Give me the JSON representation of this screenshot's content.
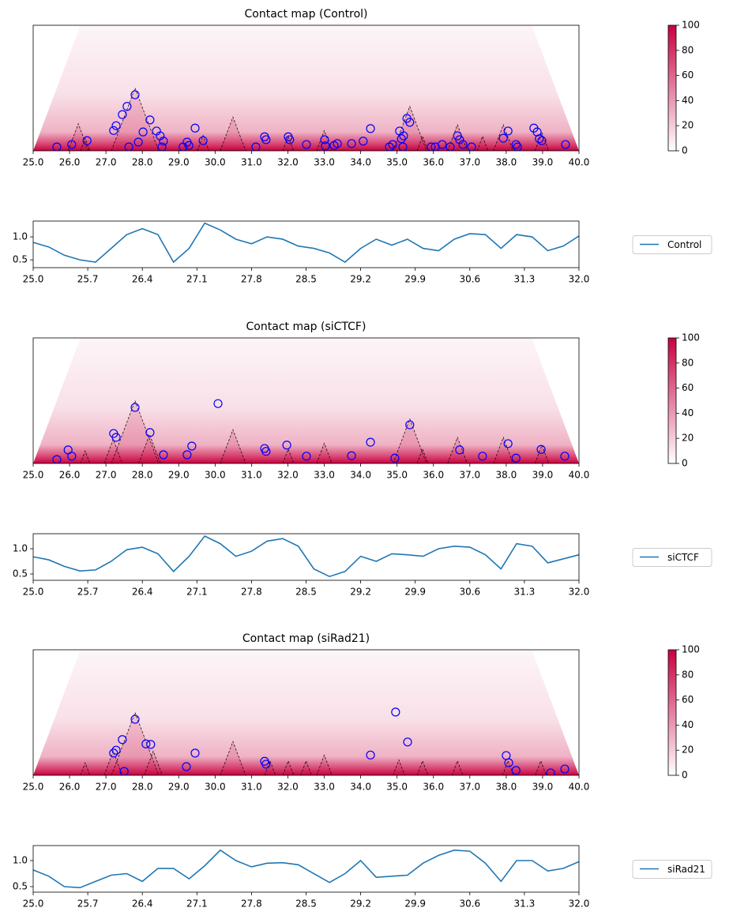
{
  "chart_data": [
    {
      "type": "heatmap",
      "title": "Contact map (Control)",
      "xlim": [
        25,
        40
      ],
      "ylim": [
        0,
        2.6
      ],
      "xticks": [
        {
          "value": 25,
          "label": "25.0"
        },
        {
          "value": 26,
          "label": "26.0"
        },
        {
          "value": 27,
          "label": "27.0"
        },
        {
          "value": 28,
          "label": "28.0"
        },
        {
          "value": 29,
          "label": "29.0"
        },
        {
          "value": 30,
          "label": "30.0"
        },
        {
          "value": 31,
          "label": "31.0"
        },
        {
          "value": 32,
          "label": "32.0"
        },
        {
          "value": 33,
          "label": "33.0"
        },
        {
          "value": 34,
          "label": "34.0"
        },
        {
          "value": 35,
          "label": "35.0"
        },
        {
          "value": 36,
          "label": "36.0"
        },
        {
          "value": 37,
          "label": "37.0"
        },
        {
          "value": 38,
          "label": "38.0"
        },
        {
          "value": 39,
          "label": "39.0"
        },
        {
          "value": 40,
          "label": "40.0"
        }
      ],
      "cmap": [
        "#ffffff",
        "#c9003f"
      ],
      "colorbar": {
        "lim": [
          0,
          100
        ],
        "ticks": [
          0,
          20,
          40,
          60,
          80,
          100
        ]
      },
      "domains": [
        [
          25.96,
          26.52
        ],
        [
          26.3,
          26.56
        ],
        [
          27.15,
          28.45
        ],
        [
          29.51,
          29.83
        ],
        [
          30.14,
          30.84
        ],
        [
          31.86,
          32.16
        ],
        [
          32.79,
          33.21
        ],
        [
          34.89,
          35.81
        ],
        [
          35.55,
          35.85
        ],
        [
          36.39,
          36.93
        ],
        [
          37.2,
          37.5
        ],
        [
          37.65,
          38.19
        ],
        [
          38.79,
          39.17
        ]
      ],
      "loops": {
        "color": "#0000ff",
        "x": [
          25.65,
          26.06,
          26.48,
          27.21,
          27.28,
          27.45,
          27.58,
          27.8,
          27.63,
          27.89,
          28.02,
          28.21,
          28.39,
          28.49,
          28.58,
          28.54,
          29.23,
          29.28,
          29.45,
          29.67,
          29.12,
          31.12,
          31.36,
          31.4,
          32.01,
          32.05,
          32.51,
          33.01,
          33.03,
          33.27,
          33.36,
          33.75,
          34.07,
          34.27,
          34.79,
          34.88,
          35.07,
          35.12,
          35.18,
          35.27,
          35.35,
          35.16,
          35.94,
          36.05,
          36.24,
          36.46,
          36.66,
          36.72,
          36.81,
          37.05,
          37.92,
          38.05,
          38.27,
          38.31,
          38.76,
          38.85,
          38.91,
          38.98,
          39.63
        ],
        "y": [
          0.08,
          0.13,
          0.21,
          0.42,
          0.52,
          0.75,
          0.92,
          1.16,
          0.08,
          0.18,
          0.39,
          0.64,
          0.41,
          0.31,
          0.2,
          0.08,
          0.18,
          0.11,
          0.47,
          0.21,
          0.08,
          0.08,
          0.29,
          0.23,
          0.29,
          0.23,
          0.13,
          0.23,
          0.1,
          0.11,
          0.15,
          0.15,
          0.2,
          0.46,
          0.08,
          0.13,
          0.41,
          0.25,
          0.31,
          0.67,
          0.59,
          0.08,
          0.08,
          0.08,
          0.13,
          0.08,
          0.31,
          0.23,
          0.13,
          0.08,
          0.26,
          0.41,
          0.13,
          0.08,
          0.47,
          0.39,
          0.25,
          0.21,
          0.13
        ]
      }
    },
    {
      "type": "line",
      "xlim": [
        25,
        32
      ],
      "ylim": [
        0.33,
        1.345
      ],
      "legend": "right",
      "xticks": [
        {
          "value": 25,
          "label": "25.0"
        },
        25.7,
        26.4,
        27.1,
        27.8,
        28.5,
        29.2,
        29.9,
        30.6,
        31.3,
        {
          "value": 32,
          "label": "32.0"
        }
      ],
      "yticks": [
        0.5,
        {
          "value": 1,
          "label": "1.0"
        }
      ],
      "x": [
        25,
        25.2,
        25.4,
        25.6,
        25.8,
        26,
        26.2,
        26.4,
        26.6,
        26.8,
        27,
        27.2,
        27.4,
        27.6,
        27.8,
        28,
        28.2,
        28.4,
        28.6,
        28.8,
        29,
        29.2,
        29.4,
        29.6,
        29.8,
        30,
        30.2,
        30.4,
        30.6,
        30.8,
        31,
        31.2,
        31.4,
        31.6,
        31.8,
        32
      ],
      "series": [
        {
          "name": "Control",
          "color": "#1f77b4",
          "values": [
            0.88,
            0.78,
            0.6,
            0.5,
            0.45,
            0.75,
            1.05,
            1.18,
            1.05,
            0.45,
            0.75,
            1.3,
            1.15,
            0.95,
            0.85,
            1.0,
            0.95,
            0.8,
            0.75,
            0.65,
            0.45,
            0.75,
            0.95,
            0.82,
            0.95,
            0.75,
            0.7,
            0.95,
            1.07,
            1.05,
            0.75,
            1.05,
            1.0,
            0.7,
            0.8,
            1.02
          ]
        }
      ]
    },
    {
      "type": "heatmap",
      "title": "Contact map (siCTCF)",
      "xlim": [
        25,
        40
      ],
      "ylim": [
        0,
        2.6
      ],
      "xticks": [
        {
          "value": 25,
          "label": "25.0"
        },
        {
          "value": 26,
          "label": "26.0"
        },
        {
          "value": 27,
          "label": "27.0"
        },
        {
          "value": 28,
          "label": "28.0"
        },
        {
          "value": 29,
          "label": "29.0"
        },
        {
          "value": 30,
          "label": "30.0"
        },
        {
          "value": 31,
          "label": "31.0"
        },
        {
          "value": 32,
          "label": "32.0"
        },
        {
          "value": 33,
          "label": "33.0"
        },
        {
          "value": 34,
          "label": "34.0"
        },
        {
          "value": 35,
          "label": "35.0"
        },
        {
          "value": 36,
          "label": "36.0"
        },
        {
          "value": 37,
          "label": "37.0"
        },
        {
          "value": 38,
          "label": "38.0"
        },
        {
          "value": 39,
          "label": "39.0"
        },
        {
          "value": 40,
          "label": "40.0"
        }
      ],
      "cmap": [
        "#ffffff",
        "#c9003f"
      ],
      "colorbar": {
        "lim": [
          0,
          100
        ],
        "ticks": [
          0,
          20,
          40,
          60,
          80,
          100
        ]
      },
      "domains": [
        [
          26.3,
          26.56
        ],
        [
          26.95,
          27.45
        ],
        [
          27.15,
          28.45
        ],
        [
          27.9,
          28.5
        ],
        [
          30.14,
          30.84
        ],
        [
          31.86,
          32.16
        ],
        [
          32.79,
          33.21
        ],
        [
          34.89,
          35.81
        ],
        [
          35.55,
          35.85
        ],
        [
          36.39,
          36.93
        ],
        [
          37.65,
          38.19
        ],
        [
          38.79,
          39.17
        ]
      ],
      "loops": {
        "color": "#0000ff",
        "x": [
          25.65,
          25.96,
          26.06,
          27.21,
          27.28,
          27.8,
          28.21,
          28.58,
          29.23,
          29.36,
          30.08,
          31.36,
          31.4,
          31.97,
          32.51,
          33.75,
          34.27,
          34.94,
          35.35,
          36.72,
          37.35,
          38.05,
          38.27,
          38.96,
          39.61
        ],
        "y": [
          0.08,
          0.28,
          0.15,
          0.62,
          0.54,
          1.16,
          0.64,
          0.18,
          0.18,
          0.36,
          1.24,
          0.31,
          0.25,
          0.38,
          0.15,
          0.16,
          0.44,
          0.11,
          0.8,
          0.28,
          0.15,
          0.41,
          0.11,
          0.29,
          0.15
        ]
      }
    },
    {
      "type": "line",
      "xlim": [
        25,
        32
      ],
      "ylim": [
        0.375,
        1.297
      ],
      "legend": "right",
      "xticks": [
        {
          "value": 25,
          "label": "25.0"
        },
        25.7,
        26.4,
        27.1,
        27.8,
        28.5,
        29.2,
        29.9,
        30.6,
        31.3,
        {
          "value": 32,
          "label": "32.0"
        }
      ],
      "yticks": [
        0.5,
        {
          "value": 1,
          "label": "1.0"
        }
      ],
      "x": [
        25,
        25.2,
        25.4,
        25.6,
        25.8,
        26,
        26.2,
        26.4,
        26.6,
        26.8,
        27,
        27.2,
        27.4,
        27.6,
        27.8,
        28,
        28.2,
        28.4,
        28.6,
        28.8,
        29,
        29.2,
        29.4,
        29.6,
        29.8,
        30,
        30.2,
        30.4,
        30.6,
        30.8,
        31,
        31.2,
        31.4,
        31.6,
        31.8,
        32
      ],
      "series": [
        {
          "name": "siCTCF",
          "color": "#1f77b4",
          "values": [
            0.84,
            0.78,
            0.65,
            0.56,
            0.58,
            0.75,
            0.98,
            1.03,
            0.9,
            0.55,
            0.85,
            1.25,
            1.1,
            0.85,
            0.95,
            1.15,
            1.2,
            1.05,
            0.6,
            0.45,
            0.55,
            0.85,
            0.75,
            0.9,
            0.88,
            0.85,
            1.0,
            1.05,
            1.03,
            0.88,
            0.6,
            1.1,
            1.05,
            0.72,
            0.8,
            0.88
          ]
        }
      ]
    },
    {
      "type": "heatmap",
      "title": "Contact map (siRad21)",
      "xlim": [
        25,
        40
      ],
      "ylim": [
        0,
        2.6
      ],
      "xticks": [
        {
          "value": 25,
          "label": "25.0"
        },
        {
          "value": 26,
          "label": "26.0"
        },
        {
          "value": 27,
          "label": "27.0"
        },
        {
          "value": 28,
          "label": "28.0"
        },
        {
          "value": 29,
          "label": "29.0"
        },
        {
          "value": 30,
          "label": "30.0"
        },
        {
          "value": 31,
          "label": "31.0"
        },
        {
          "value": 32,
          "label": "32.0"
        },
        {
          "value": 33,
          "label": "33.0"
        },
        {
          "value": 34,
          "label": "34.0"
        },
        {
          "value": 35,
          "label": "35.0"
        },
        {
          "value": 36,
          "label": "36.0"
        },
        {
          "value": 37,
          "label": "37.0"
        },
        {
          "value": 38,
          "label": "38.0"
        },
        {
          "value": 39,
          "label": "39.0"
        },
        {
          "value": 40,
          "label": "40.0"
        }
      ],
      "cmap": [
        "#ffffff",
        "#c9003f"
      ],
      "colorbar": {
        "lim": [
          0,
          100
        ],
        "ticks": [
          0,
          20,
          40,
          60,
          80,
          100
        ]
      },
      "domains": [
        [
          26.3,
          26.56
        ],
        [
          26.95,
          27.45
        ],
        [
          27.15,
          28.45
        ],
        [
          28.05,
          28.55
        ],
        [
          30.14,
          30.84
        ],
        [
          31.36,
          31.66
        ],
        [
          31.86,
          32.16
        ],
        [
          32.35,
          32.65
        ],
        [
          32.79,
          33.21
        ],
        [
          34.89,
          35.21
        ],
        [
          35.55,
          35.85
        ],
        [
          36.51,
          36.81
        ],
        [
          37.9,
          38.2
        ],
        [
          38.8,
          39.1
        ]
      ],
      "loops": {
        "color": "#0000ff",
        "x": [
          27.21,
          27.28,
          27.45,
          27.8,
          27.5,
          28.1,
          28.23,
          29.21,
          29.45,
          31.36,
          31.4,
          34.27,
          34.96,
          35.29,
          38.0,
          38.07,
          38.27,
          39.22,
          39.61
        ],
        "y": [
          0.46,
          0.52,
          0.74,
          1.16,
          0.08,
          0.65,
          0.64,
          0.18,
          0.46,
          0.29,
          0.23,
          0.42,
          1.31,
          0.69,
          0.41,
          0.26,
          0.1,
          0.05,
          0.13
        ]
      }
    },
    {
      "type": "line",
      "xlim": [
        25,
        32
      ],
      "ylim": [
        0.394,
        1.288
      ],
      "legend": "right",
      "xticks": [
        {
          "value": 25,
          "label": "25.0"
        },
        25.7,
        26.4,
        27.1,
        27.8,
        28.5,
        29.2,
        29.9,
        30.6,
        31.3,
        {
          "value": 32,
          "label": "32.0"
        }
      ],
      "yticks": [
        0.5,
        {
          "value": 1,
          "label": "1.0"
        }
      ],
      "x": [
        25,
        25.2,
        25.4,
        25.6,
        25.8,
        26,
        26.2,
        26.4,
        26.6,
        26.8,
        27,
        27.2,
        27.4,
        27.6,
        27.8,
        28,
        28.2,
        28.4,
        28.6,
        28.8,
        29,
        29.2,
        29.4,
        29.6,
        29.8,
        30,
        30.2,
        30.4,
        30.6,
        30.8,
        31,
        31.2,
        31.4,
        31.6,
        31.8,
        32
      ],
      "series": [
        {
          "name": "siRad21",
          "color": "#1f77b4",
          "values": [
            0.82,
            0.7,
            0.5,
            0.48,
            0.6,
            0.72,
            0.75,
            0.6,
            0.85,
            0.85,
            0.65,
            0.9,
            1.2,
            1.0,
            0.88,
            0.95,
            0.96,
            0.92,
            0.75,
            0.58,
            0.75,
            1.0,
            0.68,
            0.7,
            0.72,
            0.95,
            1.1,
            1.2,
            1.18,
            0.95,
            0.6,
            1.0,
            1.0,
            0.8,
            0.85,
            0.98
          ]
        }
      ]
    }
  ]
}
